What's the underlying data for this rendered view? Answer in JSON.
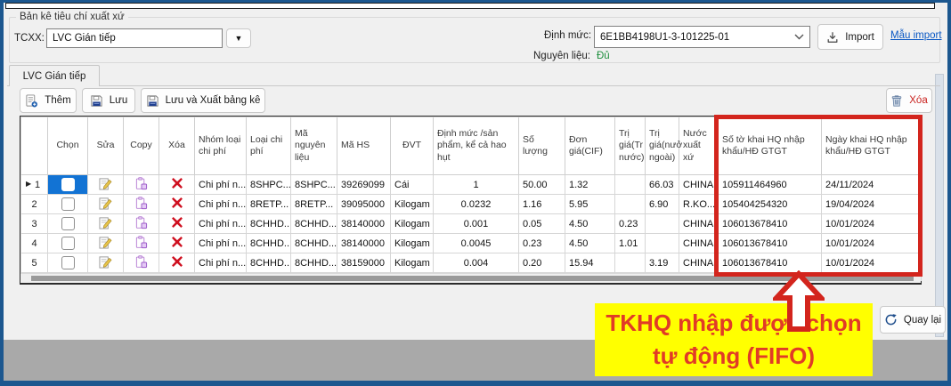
{
  "header": {
    "groupbox_label": "Bản kê tiêu chí xuất xứ",
    "tcxx_label": "TCXX:",
    "tcxx_value": "LVC Gián tiếp",
    "dinh_muc_label": "Định mức:",
    "dinh_muc_value": "6E1BB4198U1-3-101225-01",
    "import_label": "Import",
    "mau_import_label": "Mẫu import",
    "nguyen_lieu_label": "Nguyên liệu:",
    "nguyen_lieu_value": "Đủ"
  },
  "tab": {
    "label": "LVC Gián tiếp"
  },
  "toolbar": {
    "them_label": "Thêm",
    "luu_label": "Lưu",
    "luu_xuat_label": "Lưu và Xuất bảng kê",
    "xoa_label": "Xóa"
  },
  "table": {
    "columns": [
      "Chọn",
      "Sửa",
      "Copy",
      "Xóa",
      "Nhóm loại chi phí",
      "Loại chi phí",
      "Mã nguyên liệu",
      "Mã HS",
      "ĐVT",
      "Định mức /sản phẩm, kể cả hao hụt",
      "Số lượng",
      "Đơn giá(CIF)",
      "Trị giá(Tr nước)",
      "Trị giá(nưở ngoài)",
      "Nước xuất xứ",
      "Số tờ khai HQ nhập khẩu/HĐ GTGT",
      "Ngày khai HQ nhập khẩu/HĐ GTGT"
    ],
    "rows": [
      {
        "selected": true,
        "cells": [
          "1",
          "Chi phí n...",
          "8SHPC...",
          "8SHPC...",
          "39269099",
          "Cái",
          "1",
          "50.00",
          "1.32",
          "",
          "66.03",
          "CHINA",
          "105911464960",
          "24/11/2024"
        ]
      },
      {
        "selected": false,
        "cells": [
          "2",
          "Chi phí n...",
          "8RETP...",
          "8RETP...",
          "39095000",
          "Kilogam",
          "0.0232",
          "1.16",
          "5.95",
          "",
          "6.90",
          "R.KO...",
          "105404254320",
          "19/04/2024"
        ]
      },
      {
        "selected": false,
        "cells": [
          "3",
          "Chi phí n...",
          "8CHHD...",
          "8CHHD...",
          "38140000",
          "Kilogam",
          "0.001",
          "0.05",
          "4.50",
          "0.23",
          "",
          "CHINA",
          "106013678410",
          "10/01/2024"
        ]
      },
      {
        "selected": false,
        "cells": [
          "4",
          "Chi phí n...",
          "8CHHD...",
          "8CHHD...",
          "38140000",
          "Kilogam",
          "0.0045",
          "0.23",
          "4.50",
          "1.01",
          "",
          "CHINA",
          "106013678410",
          "10/01/2024"
        ]
      },
      {
        "selected": false,
        "cells": [
          "5",
          "Chi phí n...",
          "8CHHD...",
          "8CHHD...",
          "38159000",
          "Kilogam",
          "0.004",
          "0.20",
          "15.94",
          "",
          "3.19",
          "CHINA",
          "106013678410",
          "10/01/2024"
        ]
      }
    ]
  },
  "annotation": {
    "line1": "TKHQ nhập được chọn",
    "line2": "tự động (FIFO)"
  },
  "footer": {
    "quay_lai_label": "Quay lại"
  },
  "colors": {
    "frame_blue": "#1c578f",
    "annotation_red": "#d3251d",
    "annotation_text_red": "#e13b27",
    "highlight_yellow": "#ffff00",
    "selected_cell_blue": "#1273d4",
    "link_blue": "#0a58c4",
    "status_green": "#1e8f3e",
    "delete_text_red": "#c9211e",
    "bottom_band_gray": "#a9a9a9"
  }
}
